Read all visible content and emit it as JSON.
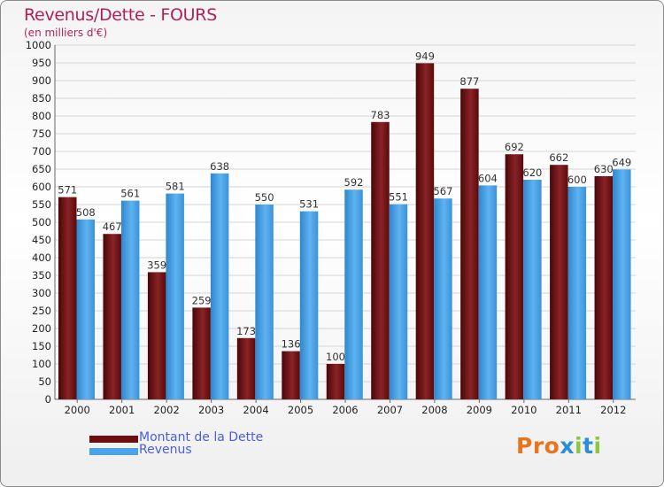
{
  "chart_data": {
    "type": "bar",
    "title": "Revenus/Dette - FOURS",
    "subtitle": "(en milliers d'€)",
    "categories": [
      "2000",
      "2001",
      "2002",
      "2003",
      "2004",
      "2005",
      "2006",
      "2007",
      "2008",
      "2009",
      "2010",
      "2011",
      "2012"
    ],
    "series": [
      {
        "name": "Montant de la Dette",
        "color": "#6b0f12",
        "values": [
          571,
          467,
          359,
          259,
          173,
          136,
          100,
          783,
          949,
          877,
          692,
          662,
          630
        ]
      },
      {
        "name": "Revenus",
        "color": "#4aa3e8",
        "values": [
          508,
          561,
          581,
          638,
          550,
          531,
          592,
          551,
          567,
          604,
          620,
          600,
          649
        ]
      }
    ],
    "ylim": [
      0,
      1000
    ],
    "ytick_step": 50,
    "grid": true,
    "legend": "bottom-left"
  },
  "logo": {
    "text": "Proxiti",
    "colors": [
      "#e8741c",
      "#e8741c",
      "#e8741c",
      "#2a8fd6",
      "#8cc63f",
      "#2a8fd6",
      "#8cc63f"
    ]
  }
}
